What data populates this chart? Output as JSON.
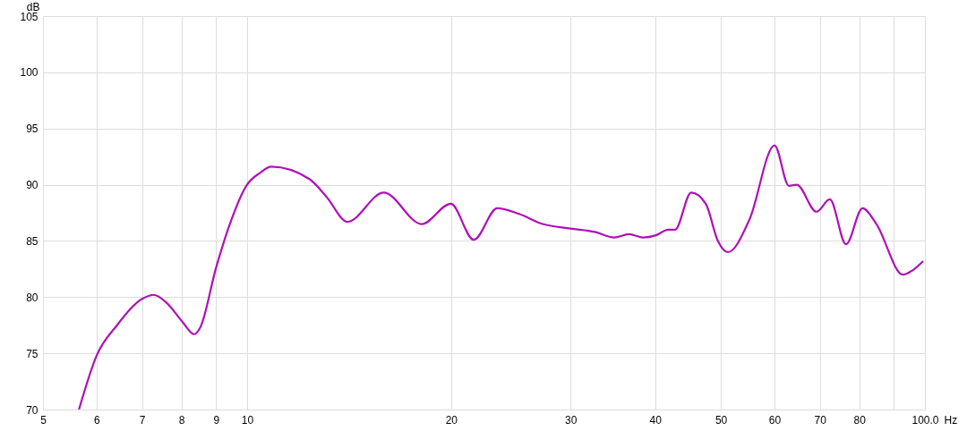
{
  "chart_data": {
    "type": "line",
    "xlabel": "Hz",
    "ylabel": "dB",
    "log": "x",
    "grid": true,
    "marker": "none",
    "line_style": "solid",
    "xlim": [
      5,
      100
    ],
    "ylim": [
      70,
      105
    ],
    "xticks": [
      5,
      6,
      7,
      8,
      9,
      10,
      20,
      30,
      40,
      50,
      60,
      70,
      80,
      {
        "value": 90,
        "label": null
      },
      {
        "value": 100,
        "label": "100.0"
      }
    ],
    "yticks": [
      70,
      75,
      80,
      85,
      90,
      95,
      100,
      105
    ],
    "series": [
      {
        "color": "#b010b8",
        "x": [
          5.65,
          6.0,
          6.43,
          7.03,
          7.28,
          7.61,
          8.03,
          8.36,
          8.53,
          9.0,
          9.37,
          10.0,
          10.45,
          10.86,
          12.36,
          13.11,
          14.06,
          15.91,
          18.1,
          19.98,
          21.6,
          23.4,
          25.2,
          27.3,
          30.0,
          32.6,
          34.8,
          36.6,
          38.4,
          40.1,
          41.8,
          42.8,
          45.2,
          47.5,
          49.5,
          51.2,
          55.1,
          60.0,
          63.0,
          64.7,
          69.2,
          72.4,
          76.5,
          80.9,
          84.8,
          92.8,
          96.0,
          99.4
        ],
        "values": [
          70.0,
          74.8,
          77.5,
          79.9,
          80.2,
          79.5,
          77.8,
          76.7,
          77.3,
          82.6,
          86.0,
          90.0,
          91.05,
          91.6,
          90.5,
          88.9,
          86.7,
          89.3,
          86.5,
          88.3,
          85.1,
          87.9,
          87.4,
          86.5,
          86.1,
          85.8,
          85.3,
          85.6,
          85.3,
          85.5,
          86.0,
          86.0,
          89.3,
          88.3,
          85.0,
          84.0,
          86.9,
          93.5,
          89.9,
          90.0,
          87.6,
          88.7,
          84.7,
          87.9,
          86.5,
          82.0,
          82.4,
          83.2
        ]
      }
    ]
  }
}
